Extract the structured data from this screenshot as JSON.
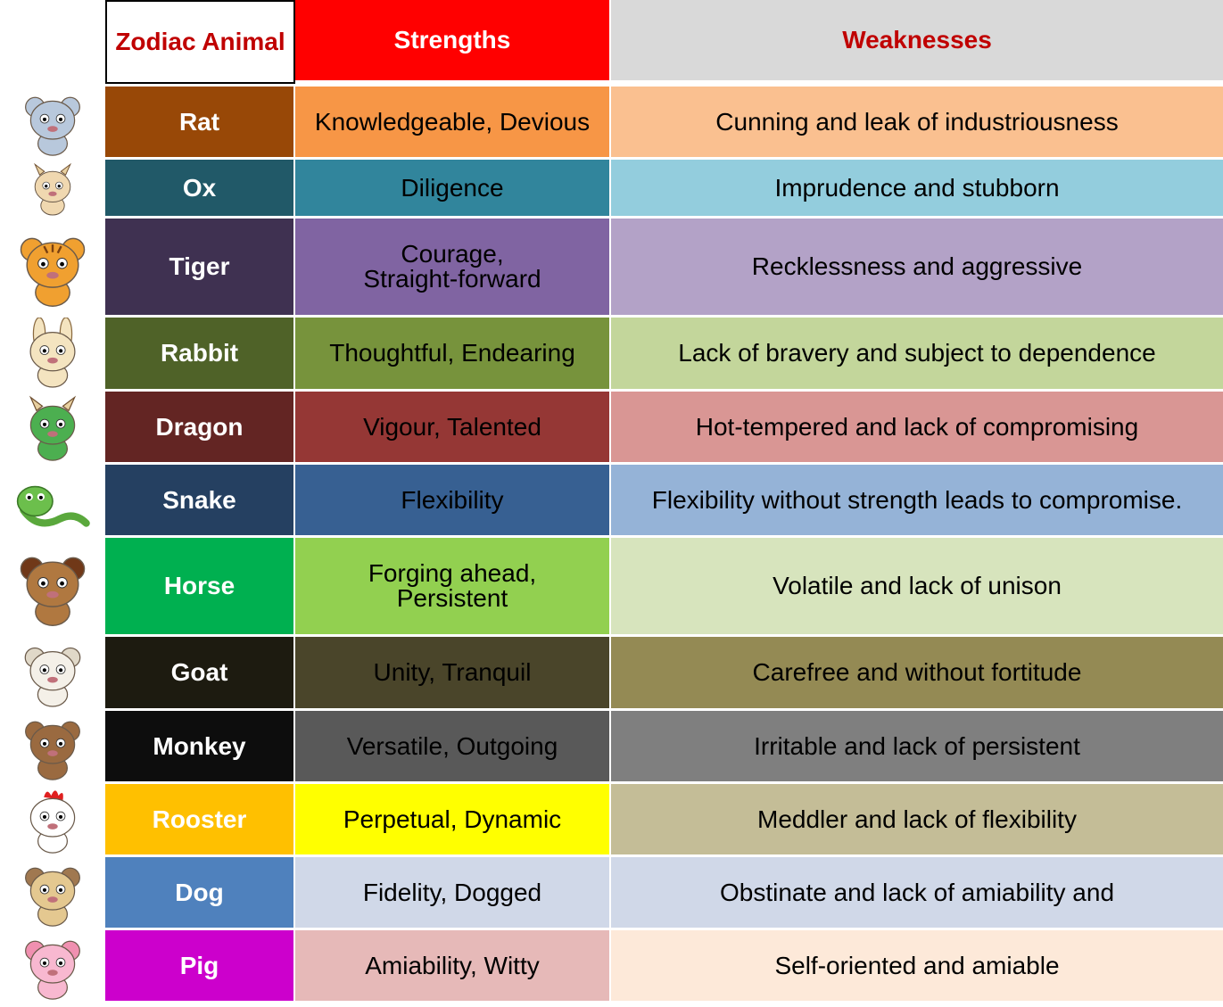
{
  "header": {
    "col1": "Zodiac Animal",
    "col2": "Strengths",
    "col3": "Weaknesses",
    "col1_color": "#c00000",
    "col2_bg": "#ff0000",
    "col2_color": "#ffffff",
    "col3_bg": "#d9d9d9",
    "col3_color": "#c00000"
  },
  "rows": [
    {
      "animal": "Rat",
      "strengths": "Knowledgeable,  Devious",
      "weaknesses": "Cunning and leak of industriousness",
      "icon": "rat-icon",
      "animal_bg": "#984807",
      "animal_fg": "#ffffff",
      "s_bg": "#f79646",
      "s_fg": "#000000",
      "w_bg": "#fac090",
      "w_fg": "#000000"
    },
    {
      "animal": "Ox",
      "strengths": "Diligence",
      "weaknesses": "Imprudence  and stubborn",
      "icon": "ox-icon",
      "animal_bg": "#215968",
      "animal_fg": "#ffffff",
      "s_bg": "#31859c",
      "s_fg": "#000000",
      "w_bg": "#93cddd",
      "w_fg": "#000000"
    },
    {
      "animal": "Tiger",
      "strengths": "Courage,\nStraight-forward",
      "weaknesses": "Recklessness and aggressive",
      "icon": "tiger-icon",
      "animal_bg": "#3f3151",
      "animal_fg": "#ffffff",
      "s_bg": "#8064a2",
      "s_fg": "#000000",
      "w_bg": "#b3a2c7",
      "w_fg": "#000000"
    },
    {
      "animal": "Rabbit",
      "strengths": "Thoughtful,  Endearing",
      "weaknesses": "Lack of bravery and subject to dependence",
      "icon": "rabbit-icon",
      "animal_bg": "#4f6228",
      "animal_fg": "#ffffff",
      "s_bg": "#77933c",
      "s_fg": "#000000",
      "w_bg": "#c3d69b",
      "w_fg": "#000000"
    },
    {
      "animal": "Dragon",
      "strengths": "Vigour, Talented",
      "weaknesses": "Hot-tempered  and lack of compromising",
      "icon": "dragon-icon",
      "animal_bg": "#632523",
      "animal_fg": "#ffffff",
      "s_bg": "#953735",
      "s_fg": "#000000",
      "w_bg": "#d99694",
      "w_fg": "#000000"
    },
    {
      "animal": "Snake",
      "strengths": "Flexibility",
      "weaknesses": "Flexibility without strength leads to compromise.",
      "icon": "snake-icon",
      "animal_bg": "#254061",
      "animal_fg": "#ffffff",
      "s_bg": "#376092",
      "s_fg": "#000000",
      "w_bg": "#95b3d7",
      "w_fg": "#000000"
    },
    {
      "animal": "Horse",
      "strengths": "Forging ahead,\nPersistent",
      "weaknesses": "Volatile and lack of unison",
      "icon": "horse-icon",
      "animal_bg": "#00b050",
      "animal_fg": "#ffffff",
      "s_bg": "#92d050",
      "s_fg": "#000000",
      "w_bg": "#d7e4bd",
      "w_fg": "#000000"
    },
    {
      "animal": "Goat",
      "strengths": "Unity, Tranquil",
      "weaknesses": "Carefree and without fortitude",
      "icon": "goat-icon",
      "animal_bg": "#1d1b10",
      "animal_fg": "#ffffff",
      "s_bg": "#4a452a",
      "s_fg": "#000000",
      "w_bg": "#948a54",
      "w_fg": "#000000"
    },
    {
      "animal": "Monkey",
      "strengths": "Versatile, Outgoing",
      "weaknesses": "Irritable and lack of persistent",
      "icon": "monkey-icon",
      "animal_bg": "#0d0d0d",
      "animal_fg": "#ffffff",
      "s_bg": "#595959",
      "s_fg": "#000000",
      "w_bg": "#7f7f7f",
      "w_fg": "#000000"
    },
    {
      "animal": "Rooster",
      "strengths": "Perpetual,  Dynamic",
      "weaknesses": "Meddler and lack of flexibility",
      "icon": "rooster-icon",
      "animal_bg": "#ffc000",
      "animal_fg": "#ffffff",
      "s_bg": "#ffff00",
      "s_fg": "#000000",
      "w_bg": "#c4bd97",
      "w_fg": "#000000"
    },
    {
      "animal": "Dog",
      "strengths": "Fidelity, Dogged",
      "weaknesses": "Obstinate and lack of amiability and",
      "icon": "dog-icon",
      "animal_bg": "#4f81bd",
      "animal_fg": "#ffffff",
      "s_bg": "#d0d8e8",
      "s_fg": "#000000",
      "w_bg": "#d0d8e8",
      "w_fg": "#000000"
    },
    {
      "animal": "Pig",
      "strengths": "Amiability, Witty",
      "weaknesses": "Self-oriented and amiable",
      "icon": "pig-icon",
      "animal_bg": "#cc00cc",
      "animal_fg": "#ffffff",
      "s_bg": "#e6b9b8",
      "s_fg": "#000000",
      "w_bg": "#fde9d9",
      "w_fg": "#000000"
    }
  ]
}
